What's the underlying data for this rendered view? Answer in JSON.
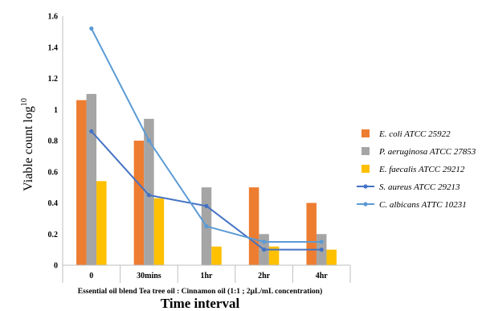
{
  "chart_data": {
    "type": "bar",
    "title": "",
    "xlabel": "Time interval",
    "x_note": "Essential oil blend Tea tree oil : Cinnamon oil (1:1 ; 2μL/mL concentration)",
    "ylabel": "Viable count log",
    "ylabel_sup": "10",
    "ylim": [
      0,
      1.6
    ],
    "yticks": [
      "0",
      "0.2",
      "0.4",
      "0.6",
      "0.8",
      "1",
      "1.2",
      "1.4",
      "1.6"
    ],
    "categories": [
      "0",
      "30mins",
      "1hr",
      "2hr",
      "4hr"
    ],
    "legend_position": "right",
    "grid": false,
    "series": [
      {
        "name": "E. coli ATCC 25922",
        "kind": "bar",
        "color": "#ED7D31",
        "values": [
          1.06,
          0.8,
          null,
          0.5,
          0.4
        ]
      },
      {
        "name": "P. aeruginosa ATCC 27853",
        "kind": "bar",
        "color": "#A5A5A5",
        "values": [
          1.1,
          0.94,
          0.5,
          0.2,
          0.2
        ]
      },
      {
        "name": "E. faecalis ATCC 29212",
        "kind": "bar",
        "color": "#FFC000",
        "values": [
          0.54,
          0.43,
          0.12,
          0.12,
          0.1
        ]
      },
      {
        "name": "S. aureus ATCC 29213",
        "kind": "line",
        "color": "#4472C4",
        "values": [
          0.86,
          0.45,
          0.38,
          0.1,
          0.1
        ]
      },
      {
        "name": "C. albicans ATTC 10231",
        "kind": "line",
        "color": "#5B9BD5",
        "values": [
          1.52,
          0.8,
          0.25,
          0.15,
          0.15
        ]
      }
    ]
  }
}
